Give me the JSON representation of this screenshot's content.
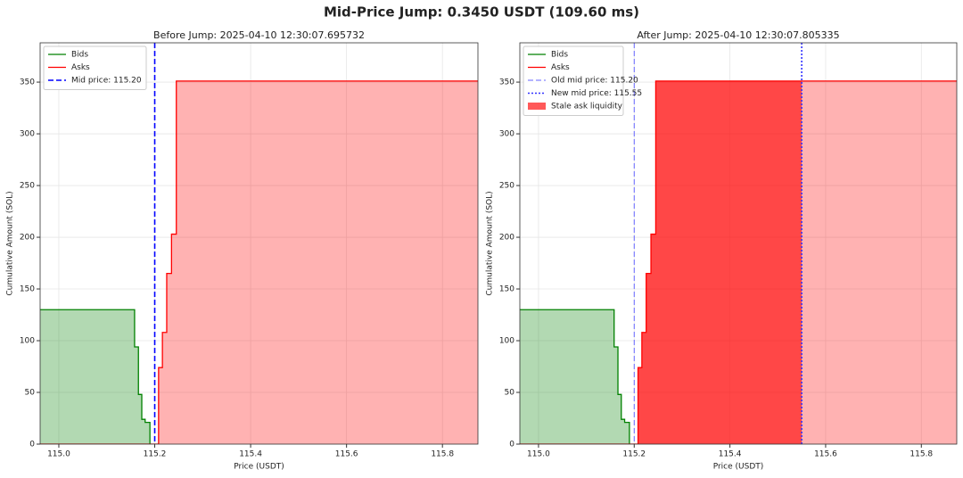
{
  "title": "Mid-Price Jump: 0.3450 USDT (109.60 ms)",
  "chart_data": [
    {
      "type": "depth",
      "title": "Before Jump: 2025-04-10 12:30:07.695732",
      "x_label": "Price (USDT)",
      "y_label": "Cumulative Amount (SOL)",
      "xlim": [
        114.961,
        115.874
      ],
      "ylim": [
        0,
        388
      ],
      "xticks": [
        {
          "value": 115,
          "label": "115.0"
        },
        115.2,
        115.4,
        115.6,
        115.8
      ],
      "yticks": [
        0,
        50,
        100,
        150,
        200,
        250,
        300,
        350
      ],
      "grid": true,
      "legend": "upper left",
      "series": [
        {
          "name": "Bids",
          "side": "bid",
          "color": "#008000",
          "x": [
            115.19,
            115.18,
            115.173,
            115.166,
            115.158
          ],
          "values": [
            21,
            24,
            48,
            94,
            130
          ]
        },
        {
          "name": "Asks",
          "side": "ask",
          "color": "#ff0000",
          "x": [
            115.208,
            115.216,
            115.225,
            115.235,
            115.245
          ],
          "values": [
            74,
            108,
            165,
            203,
            351
          ]
        }
      ],
      "vlines": [
        {
          "name": "Mid price: 115.20",
          "x": 115.2,
          "color": "#0000ff",
          "linestyle": "dashed",
          "width": 1.6
        }
      ]
    },
    {
      "type": "depth",
      "title": "After Jump: 2025-04-10 12:30:07.805335",
      "x_label": "Price (USDT)",
      "y_label": "Cumulative Amount (SOL)",
      "xlim": [
        114.961,
        115.874
      ],
      "ylim": [
        0,
        388
      ],
      "xticks": [
        {
          "value": 115,
          "label": "115.0"
        },
        115.2,
        115.4,
        115.6,
        115.8
      ],
      "yticks": [
        0,
        50,
        100,
        150,
        200,
        250,
        300,
        350
      ],
      "grid": true,
      "legend": "upper left",
      "series": [
        {
          "name": "Bids",
          "side": "bid",
          "color": "#008000",
          "x": [
            115.19,
            115.18,
            115.173,
            115.166,
            115.158
          ],
          "values": [
            21,
            24,
            48,
            94,
            130
          ]
        },
        {
          "name": "Asks",
          "side": "ask",
          "color": "#ff0000",
          "x": [
            115.208,
            115.216,
            115.225,
            115.235,
            115.245
          ],
          "values": [
            74,
            108,
            165,
            203,
            351
          ]
        }
      ],
      "vlines": [
        {
          "name": "Old mid price: 115.20",
          "x": 115.2,
          "color": "#6666ff",
          "linestyle": "dashed",
          "width": 1
        },
        {
          "name": "New mid price: 115.55",
          "x": 115.55,
          "color": "#3333ff",
          "linestyle": "dotted",
          "width": 1.6
        }
      ],
      "shaded": {
        "name": "Stale ask liquidity",
        "x0": 115.2,
        "x1": 115.55,
        "color": "#ff0000"
      }
    }
  ]
}
